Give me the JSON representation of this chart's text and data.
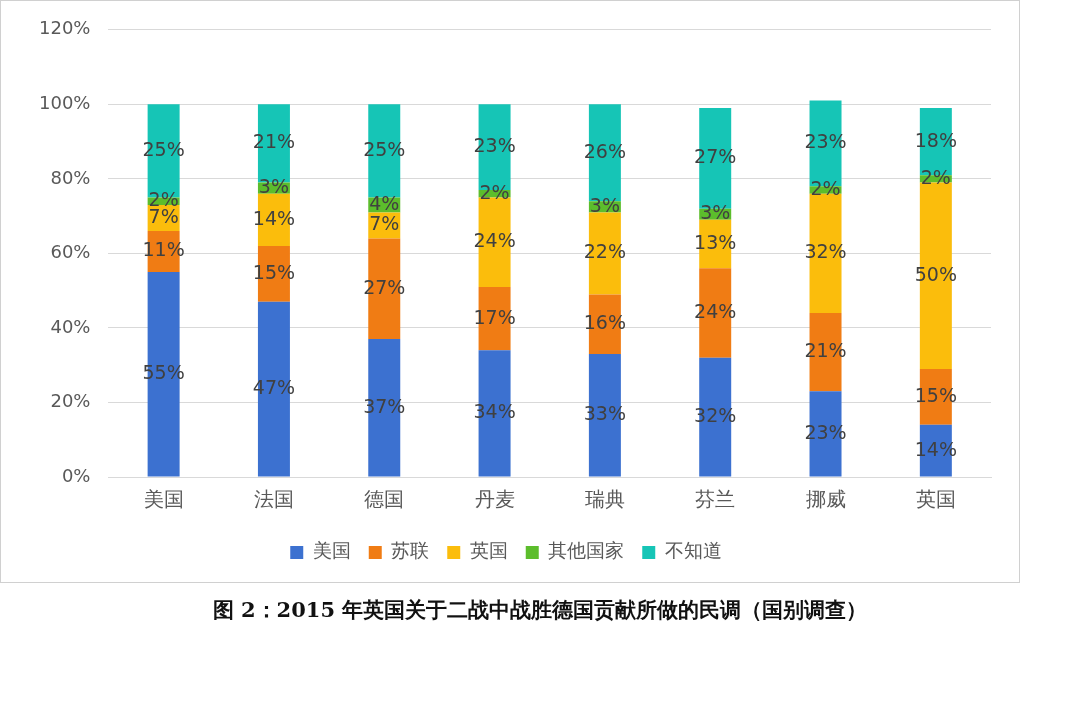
{
  "chart_data": {
    "type": "bar",
    "stacked": true,
    "title": "图 2：2015 年英国关于二战中战胜德国贡献所做的民调（国别调查）",
    "categories": [
      "美国",
      "法国",
      "德国",
      "丹麦",
      "瑞典",
      "芬兰",
      "挪威",
      "英国"
    ],
    "series": [
      {
        "name": "美国",
        "color": "#3c71d0",
        "values": [
          55,
          47,
          37,
          34,
          33,
          32,
          23,
          14
        ],
        "value_labels": [
          "55%",
          "47%",
          "37%",
          "34%",
          "33%",
          "32%",
          "23%",
          "14%"
        ]
      },
      {
        "name": "苏联",
        "color": "#f07c14",
        "values": [
          11,
          15,
          27,
          17,
          16,
          24,
          21,
          15
        ],
        "value_labels": [
          "11%",
          "15%",
          "27%",
          "17%",
          "16%",
          "24%",
          "21%",
          "15%"
        ]
      },
      {
        "name": "英国",
        "color": "#fbbd0c",
        "values": [
          7,
          14,
          7,
          24,
          22,
          13,
          32,
          50
        ],
        "value_labels": [
          "7%",
          "14%",
          "7%",
          "24%",
          "22%",
          "13%",
          "32%",
          "50%"
        ]
      },
      {
        "name": "其他国家",
        "color": "#5cbd2c",
        "values": [
          2,
          3,
          4,
          2,
          3,
          3,
          2,
          2
        ],
        "value_labels": [
          "2%",
          "3%",
          "4%",
          "2%",
          "3%",
          "3%",
          "2%",
          "2%"
        ]
      },
      {
        "name": "不知道",
        "color": "#16c5b6",
        "values": [
          25,
          21,
          25,
          23,
          26,
          27,
          23,
          18
        ],
        "value_labels": [
          "25%",
          "21%",
          "25%",
          "23%",
          "26%",
          "27%",
          "23%",
          "18%"
        ]
      }
    ],
    "ylim": [
      0,
      120
    ],
    "yticks": [
      {
        "value": 0,
        "label": "0%"
      },
      {
        "value": 20,
        "label": "20%"
      },
      {
        "value": 40,
        "label": "40%"
      },
      {
        "value": 60,
        "label": "60%"
      },
      {
        "value": 80,
        "label": "80%"
      },
      {
        "value": 100,
        "label": "100%"
      },
      {
        "value": 120,
        "label": "120%"
      }
    ],
    "grid": "y",
    "legend": "bottom"
  }
}
